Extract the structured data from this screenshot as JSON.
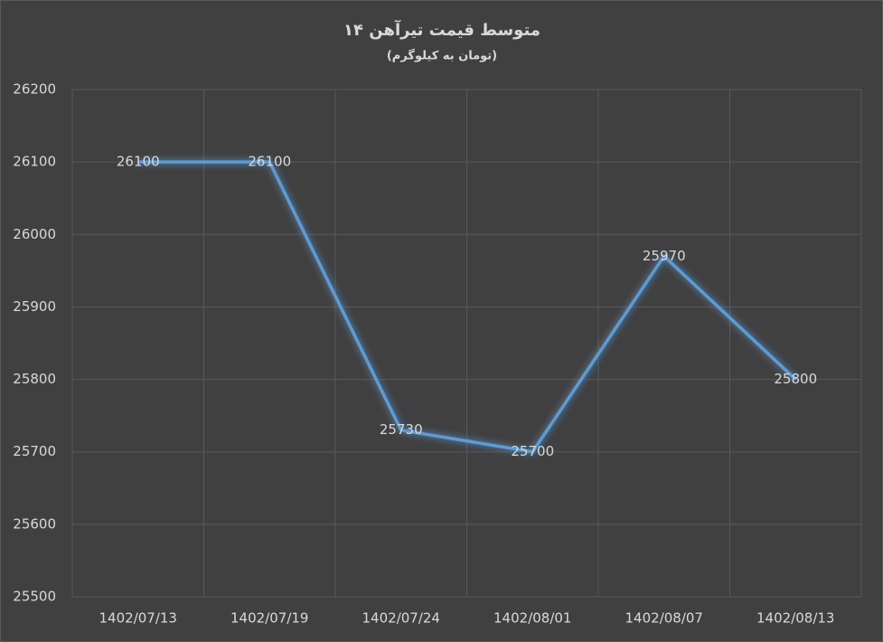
{
  "chart_data": {
    "type": "line",
    "title": "متوسط قیمت تیرآهن ۱۴",
    "subtitle": "(تومان به کیلوگرم)",
    "categories": [
      "1402/07/13",
      "1402/07/19",
      "1402/07/24",
      "1402/08/01",
      "1402/08/07",
      "1402/08/13"
    ],
    "values": [
      26100,
      26100,
      25730,
      25700,
      25970,
      25800
    ],
    "color": "#5b9bd5",
    "ylim": [
      25500,
      26200
    ],
    "yticks": [
      25500,
      25600,
      25700,
      25800,
      25900,
      26000,
      26100,
      26200
    ],
    "grid": true,
    "data_labels": true
  }
}
